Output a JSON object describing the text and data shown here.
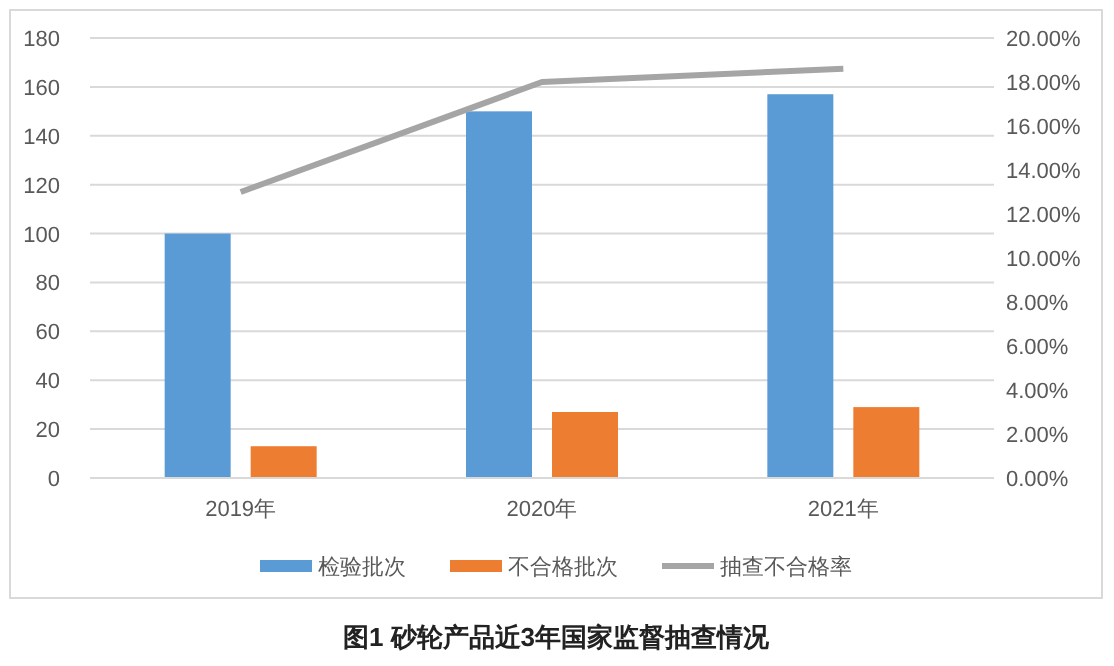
{
  "chart_data": {
    "type": "bar",
    "title": "图1 砂轮产品近3年国家监督抽查情况",
    "categories": [
      "2019年",
      "2020年",
      "2021年"
    ],
    "series": [
      {
        "name": "检验批次",
        "color": "#5b9bd5",
        "values": [
          100,
          150,
          157
        ]
      },
      {
        "name": "不合格批次",
        "color": "#ed7d31",
        "values": [
          13,
          27,
          29
        ]
      },
      {
        "name": "抽查不合格率",
        "color": "#a5a5a5",
        "type": "line",
        "axis": "y2",
        "values": [
          13.0,
          18.0,
          18.6
        ]
      }
    ],
    "ylim": [
      0,
      180
    ],
    "yticks": [
      0,
      20,
      40,
      60,
      80,
      100,
      120,
      140,
      160,
      180
    ],
    "y2lim": [
      0,
      20
    ],
    "y2ticks": [
      {
        "value": 0,
        "label": "0.00%"
      },
      {
        "value": 2,
        "label": "2.00%"
      },
      {
        "value": 4,
        "label": "4.00%"
      },
      {
        "value": 6,
        "label": "6.00%"
      },
      {
        "value": 8,
        "label": "8.00%"
      },
      {
        "value": 10,
        "label": "10.00%"
      },
      {
        "value": 12,
        "label": "12.00%"
      },
      {
        "value": 14,
        "label": "14.00%"
      },
      {
        "value": 16,
        "label": "16.00%"
      },
      {
        "value": 18,
        "label": "18.00%"
      },
      {
        "value": 20,
        "label": "20.00%"
      }
    ],
    "grid": "y",
    "legend": "bottom",
    "marker": "none"
  }
}
